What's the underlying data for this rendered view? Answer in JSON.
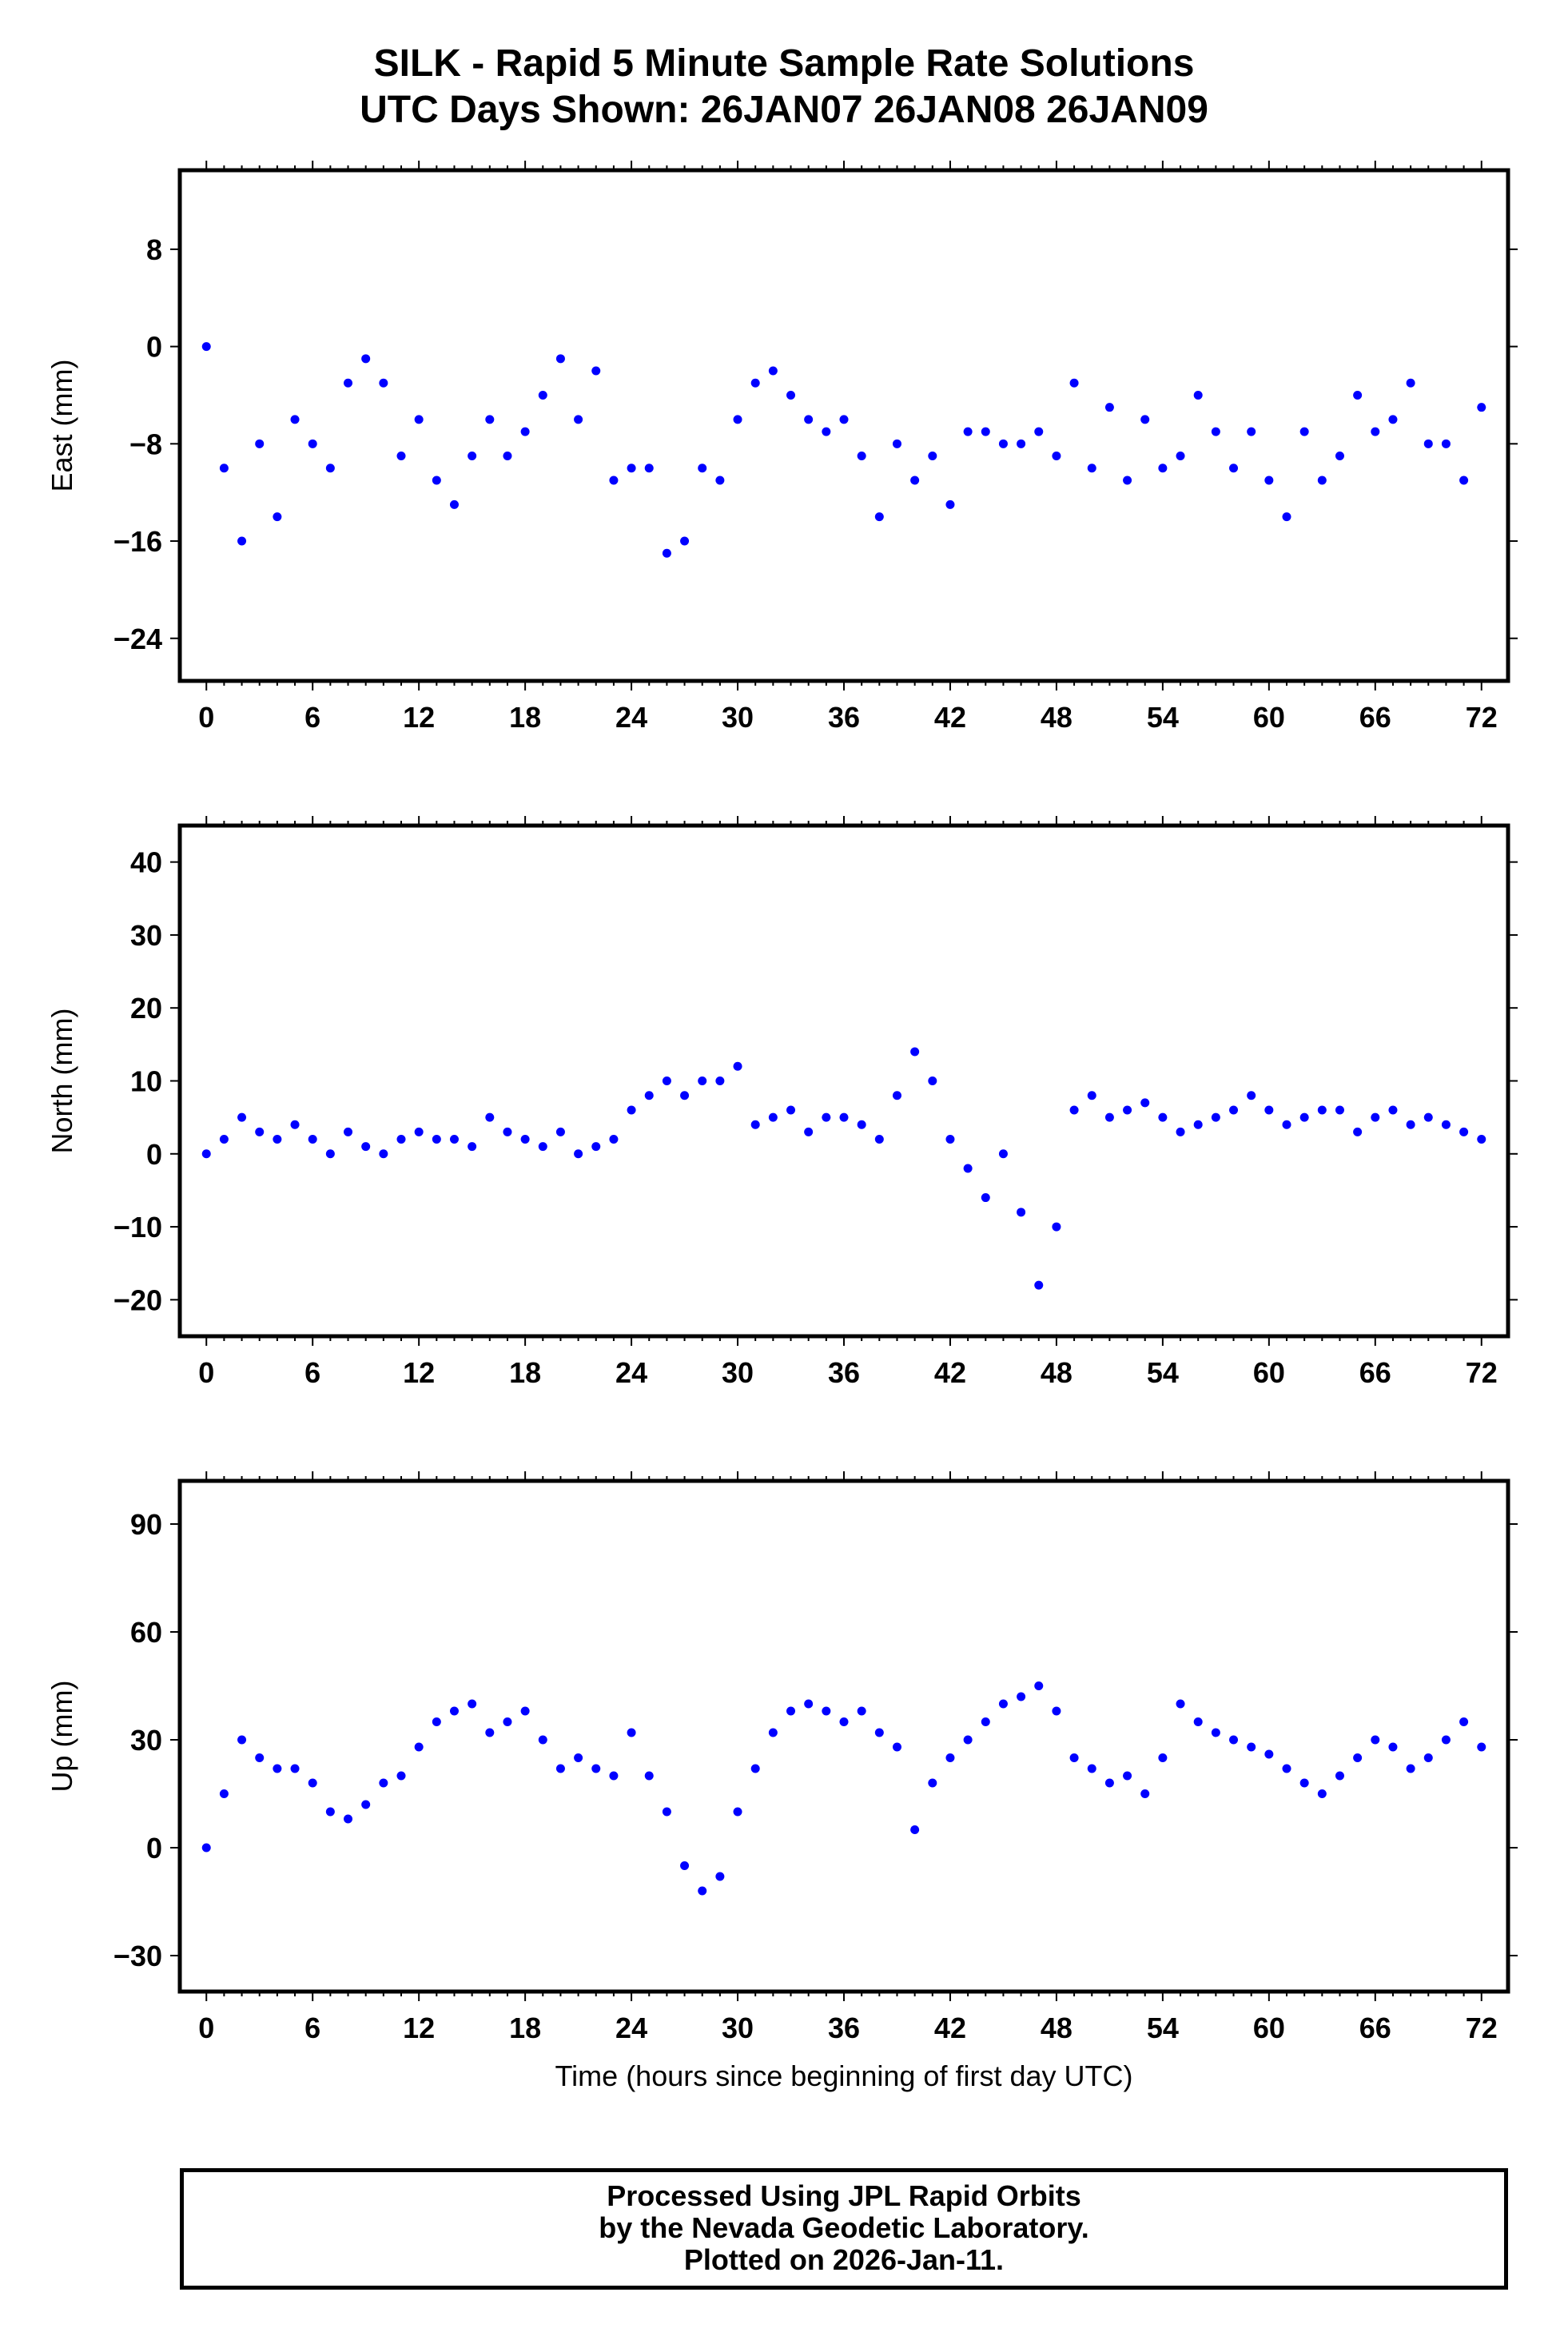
{
  "header": {
    "title": "SILK - Rapid 5 Minute Sample Rate Solutions",
    "subtitle": "UTC Days Shown:  26JAN07 26JAN08 26JAN09"
  },
  "footer": {
    "line1": "Processed Using JPL Rapid Orbits",
    "line2": "by the Nevada Geodetic Laboratory.",
    "line3": "Plotted on 2026-Jan-11."
  },
  "colors": {
    "points": "#0000ff",
    "axes": "#000000"
  },
  "chart_data": [
    {
      "type": "scatter",
      "id": "east",
      "ylabel": "East (mm)",
      "xlabel": "",
      "xlim": [
        -1.5,
        73.5
      ],
      "ylim": [
        -27.5,
        14.5
      ],
      "xticks": [
        0,
        6,
        12,
        18,
        24,
        30,
        36,
        42,
        48,
        54,
        60,
        66,
        72
      ],
      "xticklabels": [
        "0",
        "6",
        "12",
        "18",
        "24",
        "30",
        "36",
        "42",
        "48",
        "54",
        "60",
        "66",
        "72"
      ],
      "yticks": [
        8,
        0,
        -8,
        -16,
        -24
      ],
      "yticklabels": [
        "8",
        "0",
        "−8",
        "−16",
        "−24"
      ],
      "series": [
        {
          "x": [
            0,
            1,
            2,
            3,
            4,
            5,
            6,
            7,
            8,
            9,
            10,
            11,
            12,
            13,
            14,
            15,
            16,
            17,
            18,
            19,
            20,
            21,
            22,
            23,
            24,
            25,
            26,
            27,
            28,
            29,
            30,
            31,
            32,
            33,
            34,
            35,
            36,
            37,
            38,
            39,
            40,
            41,
            42,
            43,
            44,
            45,
            46,
            47,
            48,
            49,
            50,
            51,
            52,
            53,
            54,
            55,
            56,
            57,
            58,
            59,
            60,
            61,
            62,
            63,
            64,
            65,
            66,
            67,
            68,
            69,
            70,
            71,
            72
          ],
          "y": [
            0,
            -10,
            -16,
            -8,
            -14,
            -6,
            -8,
            -10,
            -3,
            -1,
            -3,
            -9,
            -6,
            -11,
            -13,
            -9,
            -6,
            -9,
            -7,
            -4,
            -1,
            -6,
            -2,
            -11,
            -10,
            -10,
            -17,
            -16,
            -10,
            -11,
            -6,
            -3,
            -2,
            -4,
            -6,
            -7,
            -6,
            -9,
            -14,
            -8,
            -11,
            -9,
            -13,
            -7,
            -7,
            -8,
            -8,
            -7,
            -9,
            -3,
            -10,
            -5,
            -11,
            -6,
            -10,
            -9,
            -4,
            -7,
            -10,
            -7,
            -11,
            -14,
            -7,
            -11,
            -9,
            -4,
            -7,
            -6,
            -3,
            -8,
            -8,
            -11,
            -5
          ]
        }
      ]
    },
    {
      "type": "scatter",
      "id": "north",
      "ylabel": "North (mm)",
      "xlabel": "",
      "xlim": [
        -1.5,
        73.5
      ],
      "ylim": [
        -25,
        45
      ],
      "xticks": [
        0,
        6,
        12,
        18,
        24,
        30,
        36,
        42,
        48,
        54,
        60,
        66,
        72
      ],
      "xticklabels": [
        "0",
        "6",
        "12",
        "18",
        "24",
        "30",
        "36",
        "42",
        "48",
        "54",
        "60",
        "66",
        "72"
      ],
      "yticks": [
        40,
        30,
        20,
        10,
        0,
        -10,
        -20
      ],
      "yticklabels": [
        "40",
        "30",
        "20",
        "10",
        "0",
        "−10",
        "−20"
      ],
      "series": [
        {
          "x": [
            0,
            1,
            2,
            3,
            4,
            5,
            6,
            7,
            8,
            9,
            10,
            11,
            12,
            13,
            14,
            15,
            16,
            17,
            18,
            19,
            20,
            21,
            22,
            23,
            24,
            25,
            26,
            27,
            28,
            29,
            30,
            31,
            32,
            33,
            34,
            35,
            36,
            37,
            38,
            39,
            40,
            41,
            42,
            43,
            44,
            45,
            46,
            47,
            48,
            49,
            50,
            51,
            52,
            53,
            54,
            55,
            56,
            57,
            58,
            59,
            60,
            61,
            62,
            63,
            64,
            65,
            66,
            67,
            68,
            69,
            70,
            71,
            72
          ],
          "y": [
            0,
            2,
            5,
            3,
            2,
            4,
            2,
            0,
            3,
            1,
            0,
            2,
            3,
            2,
            2,
            1,
            5,
            3,
            2,
            1,
            3,
            0,
            1,
            2,
            6,
            8,
            10,
            8,
            10,
            10,
            12,
            4,
            5,
            6,
            3,
            5,
            5,
            4,
            2,
            8,
            14,
            10,
            2,
            -2,
            -6,
            0,
            -8,
            -18,
            -10,
            6,
            8,
            5,
            6,
            7,
            5,
            3,
            4,
            5,
            6,
            8,
            6,
            4,
            5,
            6,
            6,
            3,
            5,
            6,
            4,
            5,
            4,
            3,
            2
          ]
        }
      ]
    },
    {
      "type": "scatter",
      "id": "up",
      "ylabel": "Up (mm)",
      "xlabel": "Time (hours since beginning of first day UTC)",
      "xlim": [
        -1.5,
        73.5
      ],
      "ylim": [
        -40,
        102
      ],
      "xticks": [
        0,
        6,
        12,
        18,
        24,
        30,
        36,
        42,
        48,
        54,
        60,
        66,
        72
      ],
      "xticklabels": [
        "0",
        "6",
        "12",
        "18",
        "24",
        "30",
        "36",
        "42",
        "48",
        "54",
        "60",
        "66",
        "72"
      ],
      "yticks": [
        90,
        60,
        30,
        0,
        -30
      ],
      "yticklabels": [
        "90",
        "60",
        "30",
        "0",
        "−30"
      ],
      "series": [
        {
          "x": [
            0,
            1,
            2,
            3,
            4,
            5,
            6,
            7,
            8,
            9,
            10,
            11,
            12,
            13,
            14,
            15,
            16,
            17,
            18,
            19,
            20,
            21,
            22,
            23,
            24,
            25,
            26,
            27,
            28,
            29,
            30,
            31,
            32,
            33,
            34,
            35,
            36,
            37,
            38,
            39,
            40,
            41,
            42,
            43,
            44,
            45,
            46,
            47,
            48,
            49,
            50,
            51,
            52,
            53,
            54,
            55,
            56,
            57,
            58,
            59,
            60,
            61,
            62,
            63,
            64,
            65,
            66,
            67,
            68,
            69,
            70,
            71,
            72
          ],
          "y": [
            0,
            15,
            30,
            25,
            22,
            22,
            18,
            10,
            8,
            12,
            18,
            20,
            28,
            35,
            38,
            40,
            32,
            35,
            38,
            30,
            22,
            25,
            22,
            20,
            32,
            20,
            10,
            -5,
            -12,
            -8,
            10,
            22,
            32,
            38,
            40,
            38,
            35,
            38,
            32,
            28,
            5,
            18,
            25,
            30,
            35,
            40,
            42,
            45,
            38,
            25,
            22,
            18,
            20,
            15,
            25,
            40,
            35,
            32,
            30,
            28,
            26,
            22,
            18,
            15,
            20,
            25,
            30,
            28,
            22,
            25,
            30,
            35,
            28
          ]
        }
      ]
    }
  ]
}
